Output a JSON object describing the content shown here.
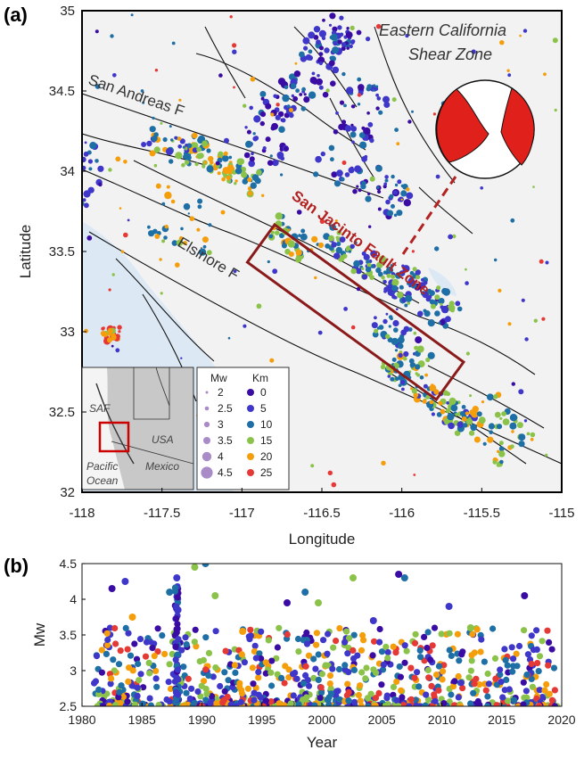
{
  "panel_a": {
    "letter": "(a)",
    "xlabel": "Longitude",
    "ylabel": "Latitude",
    "xticks": [
      "-118",
      "-117.5",
      "-117",
      "-116.5",
      "-116",
      "-115.5",
      "-115"
    ],
    "yticks": [
      "35",
      "34.5",
      "34",
      "33.5",
      "33",
      "32.5",
      "32"
    ],
    "xlim": [
      -118,
      -115
    ],
    "ylim": [
      32,
      35
    ],
    "annotation_ecsz_line1": "Eastern California",
    "annotation_ecsz_line2": "Shear Zone",
    "label_saf": "San Andreas F",
    "label_elsinore": "Elsinore F",
    "label_sjfz": "San Jacinto Fault Zone",
    "legend": {
      "mw_title": "Mw",
      "mw_values": [
        "2",
        "2.5",
        "3",
        "3.5",
        "4",
        "4.5"
      ],
      "km_title": "Km",
      "km_values": [
        "0",
        "5",
        "10",
        "15",
        "20",
        "25"
      ],
      "depth_colors": [
        "#3a0ca3",
        "#3f37c9",
        "#1d6fa5",
        "#8bc34a",
        "#f59e0b",
        "#e53935"
      ]
    },
    "inset": {
      "label_saf": "SAF",
      "label_usa": "USA",
      "label_mexico": "Mexico",
      "label_pacific": "Pacific",
      "label_ocean": "Ocean"
    },
    "colors": {
      "land": "#f2f2f2",
      "water": "#dce9f5",
      "faults": "#111111",
      "box": "#8b1a1a",
      "beachball_red": "#e0201b"
    }
  },
  "panel_b": {
    "letter": "(b)",
    "xlabel": "Year",
    "ylabel": "Mw",
    "xticks": [
      "1980",
      "1985",
      "1990",
      "1995",
      "2000",
      "2005",
      "2010",
      "2015",
      "2020"
    ],
    "yticks": [
      "4.5",
      "4",
      "3.5",
      "3",
      "2.5"
    ]
  },
  "chart_data": {
    "type": "scatter",
    "xlabel": "Year",
    "ylabel": "Mw",
    "xlim": [
      1980,
      2020
    ],
    "ylim": [
      2.5,
      4.5
    ],
    "grid": false,
    "points": [
      {
        "x": 1982.5,
        "y": 4.15,
        "depth": 0
      },
      {
        "x": 1983.6,
        "y": 4.25,
        "depth": 5
      },
      {
        "x": 1984.2,
        "y": 3.75,
        "depth": 20
      },
      {
        "x": 1987.3,
        "y": 4.1,
        "depth": 10
      },
      {
        "x": 1987.9,
        "y": 4.3,
        "depth": 5
      },
      {
        "x": 1989.4,
        "y": 4.45,
        "depth": 15
      },
      {
        "x": 1990.3,
        "y": 4.5,
        "depth": 10
      },
      {
        "x": 1991.1,
        "y": 4.05,
        "depth": 15
      },
      {
        "x": 1997.1,
        "y": 3.95,
        "depth": 0
      },
      {
        "x": 1998.6,
        "y": 4.1,
        "depth": 10
      },
      {
        "x": 1999.7,
        "y": 3.95,
        "depth": 15
      },
      {
        "x": 2002.6,
        "y": 4.3,
        "depth": 15
      },
      {
        "x": 2006.4,
        "y": 4.35,
        "depth": 0
      },
      {
        "x": 2006.9,
        "y": 4.3,
        "depth": 10
      },
      {
        "x": 2010.6,
        "y": 3.9,
        "depth": 5
      },
      {
        "x": 2016.9,
        "y": 4.05,
        "depth": 0
      },
      {
        "x": 2012.4,
        "y": 3.6,
        "depth": 15
      },
      {
        "x": 1988.0,
        "y": 3.85,
        "depth": 5
      },
      {
        "x": 1993.4,
        "y": 3.55,
        "depth": 20
      },
      {
        "x": 2004.3,
        "y": 3.7,
        "depth": 5
      }
    ]
  }
}
